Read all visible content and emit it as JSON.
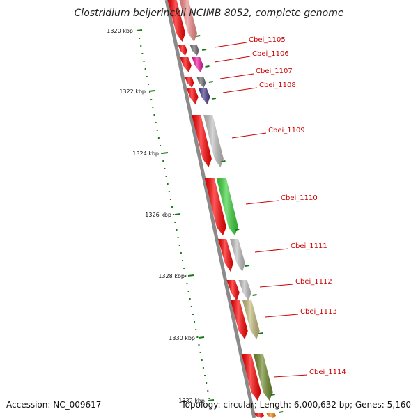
{
  "title": "Clostridium beijerinckii NCIMB 8052, complete genome",
  "footer": {
    "accession": "Accession: NC_009617",
    "topology": "Topology: circular; Length: 6,000,632 bp; Genes: 5,160"
  },
  "scale_labels": [
    "1320 kbp",
    "1322 kbp",
    "1324 kbp",
    "1326 kbp",
    "1328 kbp",
    "1330 kbp",
    "1332 kbp"
  ],
  "colors": {
    "backbone": "#8a8a8a",
    "forward_cds": "#ff0000",
    "label": "#cc0000",
    "tick": "#1a7a1a"
  },
  "genes": [
    {
      "label": "Cbei_1105",
      "color": "#f08a8a"
    },
    {
      "label": "Cbei_1106",
      "color": "#707070"
    },
    {
      "label": "Cbei_1107",
      "color": "#ee1aa0"
    },
    {
      "label": "Cbei_1108",
      "color": "#707070"
    },
    {
      "label": "",
      "color": "#4a3c8c"
    },
    {
      "label": "Cbei_1109",
      "color": "#c0c0c0"
    },
    {
      "label": "Cbei_1110",
      "color": "#3cd23c"
    },
    {
      "label": "Cbei_1111",
      "color": "#c0c0c0"
    },
    {
      "label": "Cbei_1112",
      "color": "#c0c0c0"
    },
    {
      "label": "Cbei_1113",
      "color": "#c4bc7c"
    },
    {
      "label": "Cbei_1114",
      "color": "#6e8a2a"
    },
    {
      "label": "",
      "color": "#f08a10"
    }
  ]
}
